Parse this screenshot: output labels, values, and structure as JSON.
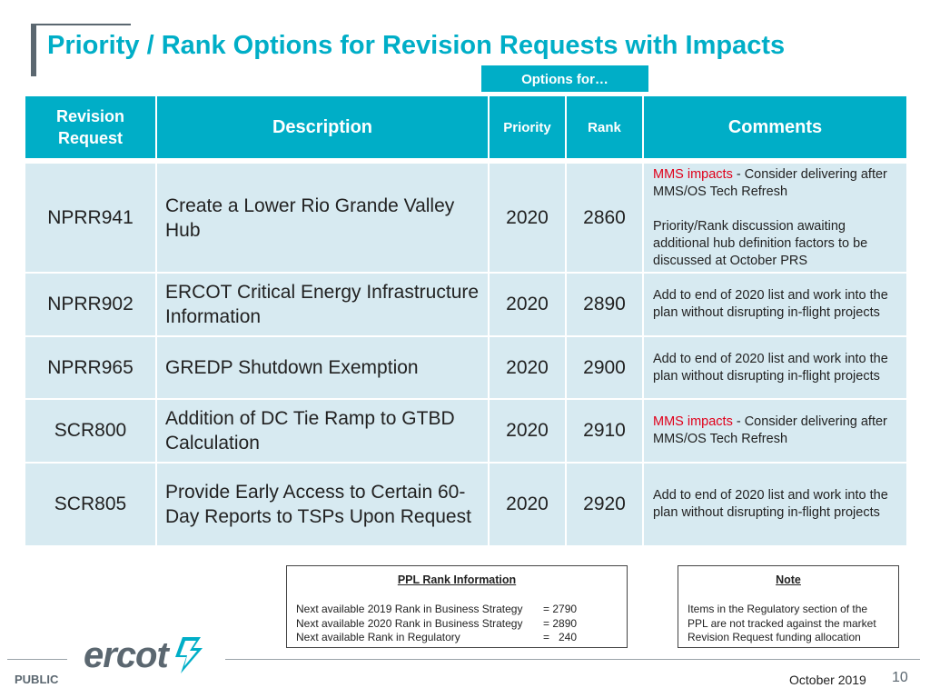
{
  "header": {
    "title": "Priority / Rank Options for Revision Requests with Impacts",
    "options_label": "Options for…"
  },
  "table": {
    "columns": {
      "revision_request_line1": "Revision",
      "revision_request_line2": "Request",
      "description": "Description",
      "priority": "Priority",
      "rank": "Rank",
      "comments": "Comments"
    },
    "rows": [
      {
        "id": "NPRR941",
        "description": "Create a Lower Rio Grande Valley Hub",
        "priority": "2020",
        "rank": "2860",
        "comment_highlight": "MMS impacts",
        "comment_rest": " - Consider delivering after MMS/OS Tech Refresh",
        "comment_extra": "Priority/Rank discussion awaiting additional hub definition factors to be discussed at October PRS"
      },
      {
        "id": "NPRR902",
        "description": "ERCOT Critical Energy Infrastructure Information",
        "priority": "2020",
        "rank": "2890",
        "comment": "Add to end of 2020 list and work into the plan without disrupting in-flight projects"
      },
      {
        "id": "NPRR965",
        "description": "GREDP Shutdown Exemption",
        "priority": "2020",
        "rank": "2900",
        "comment": "Add to end of 2020 list and work into the plan without disrupting in-flight projects"
      },
      {
        "id": "SCR800",
        "description": "Addition of DC Tie Ramp to GTBD Calculation",
        "priority": "2020",
        "rank": "2910",
        "comment_highlight": "MMS impacts",
        "comment_rest": " - Consider delivering after MMS/OS Tech Refresh"
      },
      {
        "id": "SCR805",
        "description": "Provide Early Access to Certain 60-Day Reports to TSPs Upon Request",
        "priority": "2020",
        "rank": "2920",
        "comment": "Add to end of 2020 list and work into the plan without disrupting in-flight projects"
      }
    ]
  },
  "ppl_box": {
    "heading": "PPL Rank Information",
    "lines": [
      {
        "label": "Next available 2019 Rank in Business Strategy",
        "value": "= 2790"
      },
      {
        "label": "Next available 2020 Rank in Business Strategy",
        "value": "= 2890"
      },
      {
        "label": "Next available Rank in Regulatory",
        "value": "=   240"
      }
    ]
  },
  "note_box": {
    "heading": "Note",
    "lines": [
      "Items in the Regulatory section of the",
      "PPL are not tracked against the market",
      "Revision Request funding allocation"
    ]
  },
  "footer": {
    "logo_text": "ercot",
    "classification": "PUBLIC",
    "date": "October 2019",
    "page_number": "10"
  },
  "colors": {
    "accent": "#00aec7",
    "row_fill": "#d7eaf1",
    "highlight": "#e0001a",
    "brand_gray": "#5b6770"
  },
  "icons": {
    "logo_mark": "ercot-lightning-icon"
  }
}
